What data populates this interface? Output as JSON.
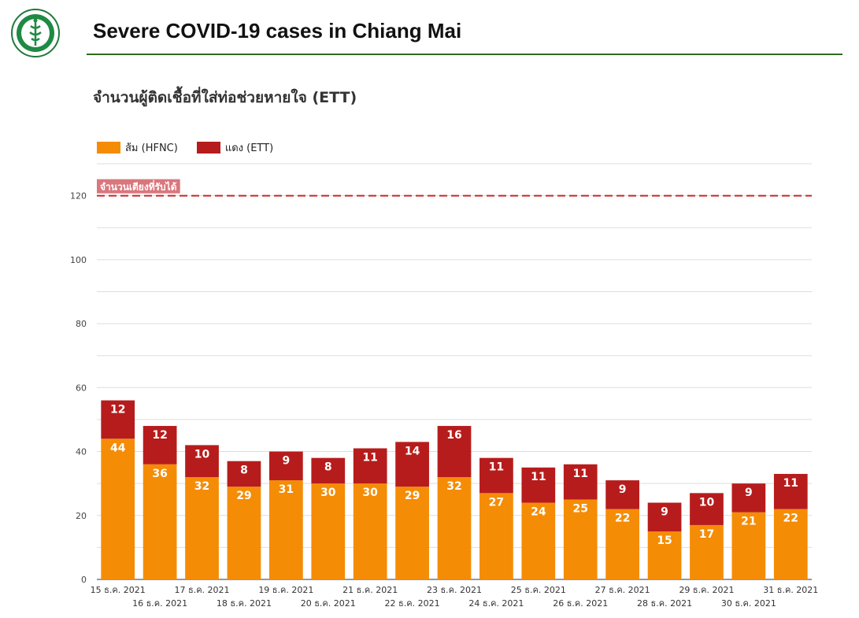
{
  "header": {
    "title": "Severe COVID-19 cases in Chiang Mai"
  },
  "chart_data": {
    "type": "bar",
    "stacked": true,
    "title": "จำนวนผู้ติดเชื้อที่ใส่ท่อช่วยหายใจ (ETT)",
    "categories": [
      "15 ธ.ค. 2021",
      "16 ธ.ค. 2021",
      "17 ธ.ค. 2021",
      "18 ธ.ค. 2021",
      "19 ธ.ค. 2021",
      "20 ธ.ค. 2021",
      "21 ธ.ค. 2021",
      "22 ธ.ค. 2021",
      "23 ธ.ค. 2021",
      "24 ธ.ค. 2021",
      "25 ธ.ค. 2021",
      "26 ธ.ค. 2021",
      "27 ธ.ค. 2021",
      "28 ธ.ค. 2021",
      "29 ธ.ค. 2021",
      "30 ธ.ค. 2021",
      "31 ธ.ค. 2021"
    ],
    "series": [
      {
        "name": "ส้ม (HFNC)",
        "color": "#f58c06",
        "values": [
          44,
          36,
          32,
          29,
          31,
          30,
          30,
          29,
          32,
          27,
          24,
          25,
          22,
          15,
          17,
          21,
          22
        ]
      },
      {
        "name": "แดง (ETT)",
        "color": "#b71c1c",
        "values": [
          12,
          12,
          10,
          8,
          9,
          8,
          11,
          14,
          16,
          11,
          11,
          11,
          9,
          9,
          10,
          9,
          11
        ]
      }
    ],
    "ylim": [
      0,
      130
    ],
    "yticks": [
      0,
      20,
      40,
      60,
      80,
      100,
      120
    ],
    "grid": true,
    "legend_position": "top-left",
    "reference_line": {
      "value": 120,
      "label": "จำนวนเตียงที่รับได้",
      "color": "#c62828"
    }
  }
}
